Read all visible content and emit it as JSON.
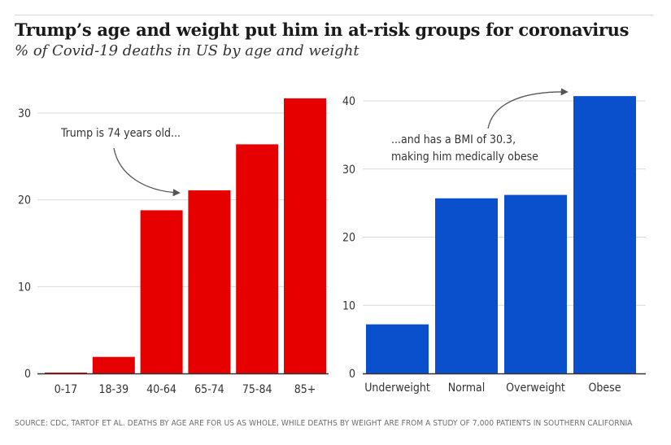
{
  "header": {
    "title": "Trump’s age and weight put him in at-risk groups for coronavirus",
    "subtitle": "% of Covid-19 deaths in US by age and weight"
  },
  "footer": {
    "source": "SOURCE: CDC, TARTOF ET AL. DEATHS BY AGE ARE FOR US AS WHOLE, WHILE DEATHS BY WEIGHT ARE FROM A STUDY OF 7,000 PATIENTS IN SOUTHERN CALIFORNIA"
  },
  "colors": {
    "age_bar": "#e60000",
    "weight_bar": "#0a4fcc",
    "grid": "#d9d9d9",
    "axis": "#333333",
    "text": "#333333",
    "arrow": "#555555"
  },
  "chart_data": [
    {
      "type": "bar",
      "title": "% of Covid-19 deaths in US by age",
      "categories": [
        "0-17",
        "18-39",
        "40-64",
        "65-74",
        "75-84",
        "85+"
      ],
      "values": [
        0.1,
        1.9,
        18.8,
        21.1,
        26.4,
        31.7
      ],
      "ylim": [
        0,
        30
      ],
      "yticks": [
        0,
        10,
        20,
        30
      ],
      "xlabel": "",
      "ylabel": "",
      "annotation": {
        "text": "Trump is 74 years old...",
        "target": "65-74"
      }
    },
    {
      "type": "bar",
      "title": "% of Covid-19 deaths in US by weight",
      "categories": [
        "Underweight",
        "Normal",
        "Overweight",
        "Obese"
      ],
      "values": [
        7.2,
        25.7,
        26.2,
        40.7
      ],
      "ylim": [
        0,
        40
      ],
      "yticks": [
        0,
        10,
        20,
        30,
        40
      ],
      "xlabel": "",
      "ylabel": "",
      "annotation": {
        "text": "...and has a BMI of 30.3, making him medically obese",
        "lines": [
          "...and has a BMI of 30.3,",
          "making him medically obese"
        ],
        "target": "Obese"
      }
    }
  ]
}
